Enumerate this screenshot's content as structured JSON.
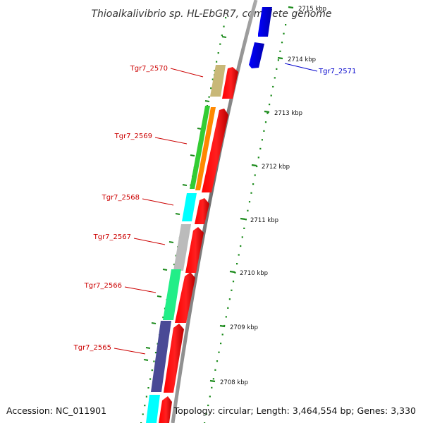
{
  "title": "Thioalkalivibrio sp. HL-EbGR7, complete genome",
  "accession": "Accession: NC_011901",
  "topology": "Topology: circular; Length: 3,464,554 bp; Genes: 3,330",
  "ticks": [
    {
      "label": "2715 kbp",
      "faded": true
    },
    {
      "label": "2714 kbp"
    },
    {
      "label": "2713 kbp"
    },
    {
      "label": "2712 kbp"
    },
    {
      "label": "2711 kbp"
    },
    {
      "label": "2710 kbp"
    },
    {
      "label": "2709 kbp"
    },
    {
      "label": "2708 kbp"
    }
  ],
  "genes": [
    {
      "id": "Tgr7_2571",
      "strand": "minus",
      "color": "#0000cc"
    },
    {
      "id": "Tgr7_2570",
      "strand": "plus",
      "color": "#cc0000"
    },
    {
      "id": "Tgr7_2569",
      "strand": "plus",
      "color": "#cc0000"
    },
    {
      "id": "Tgr7_2568",
      "strand": "plus",
      "color": "#cc0000"
    },
    {
      "id": "Tgr7_2567",
      "strand": "plus",
      "color": "#cc0000"
    },
    {
      "id": "Tgr7_2566",
      "strand": "plus",
      "color": "#cc0000"
    },
    {
      "id": "Tgr7_2565",
      "strand": "plus",
      "color": "#cc0000"
    }
  ],
  "colors": {
    "cds": "#ff0000",
    "minus_cds": "#0000ff",
    "backbone": "#888888",
    "ticks": "#1a8a1a",
    "cog_khaki": "#c8b878",
    "cog_green": "#33cc33",
    "cog_orange": "#ff8800",
    "cog_cyan": "#00ffff",
    "cog_lightgray": "#bbbbbb",
    "cog_mint": "#22ee88",
    "cog_slate": "#4a4a96"
  }
}
